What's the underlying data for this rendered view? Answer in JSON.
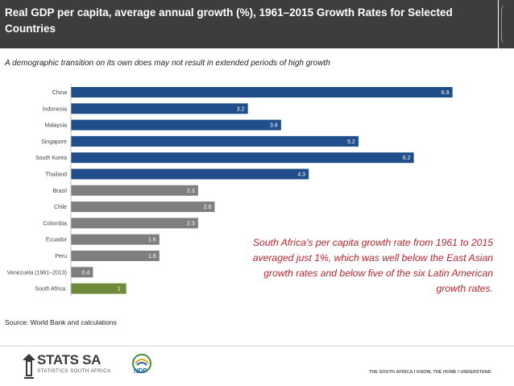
{
  "header": {
    "title": "Real GDP per capita, average annual growth (%), 1961–2015 Growth Rates for Selected Countries"
  },
  "subtitle": "A demographic transition on its own does may not result in extended periods of high growth",
  "callout": "South Africa’s per capita growth rate from 1961 to 2015 averaged just 1%, which was well below the East Asian growth rates and below five of the six Latin American growth rates.",
  "source": "Source: World Bank and calculations",
  "footer": {
    "logo_name": "STATS SA",
    "logo_subtitle": "STATISTICS SOUTH AFRICA",
    "ndp_text": "NDP",
    "tagline": "THE SOUTH AFRICA I KNOW, THE HOME I UNDERSTAND"
  },
  "colors": {
    "east_asia": "#1f4e8a",
    "latin_america": "#7f7f7f",
    "south_africa": "#6f8a3a"
  },
  "chart_data": {
    "type": "bar",
    "orientation": "horizontal",
    "title": "Real GDP per capita, average annual growth (%), 1961–2015",
    "xlabel": "",
    "ylabel": "",
    "xlim": [
      0,
      7.4
    ],
    "grid": false,
    "categories": [
      "China",
      "Indonesia",
      "Malaysia",
      "Singapore",
      "South Korea",
      "Thailand",
      "Brazil",
      "Chile",
      "Colombia",
      "Ecuador",
      "Peru",
      "Venezuela (1961–2013)",
      "South Africa:"
    ],
    "values": [
      6.9,
      3.2,
      3.8,
      5.2,
      6.2,
      4.3,
      2.3,
      2.6,
      2.3,
      1.6,
      1.6,
      0.4,
      1
    ],
    "groups": [
      "east_asia",
      "east_asia",
      "east_asia",
      "east_asia",
      "east_asia",
      "east_asia",
      "latin_america",
      "latin_america",
      "latin_america",
      "latin_america",
      "latin_america",
      "latin_america",
      "south_africa"
    ],
    "data_labels": [
      "6.9",
      "3.2",
      "3.8",
      "5.2",
      "6.2",
      "4.3",
      "2.3",
      "2.6",
      "2.3",
      "1.6",
      "1.6",
      "0.4",
      "1"
    ]
  }
}
